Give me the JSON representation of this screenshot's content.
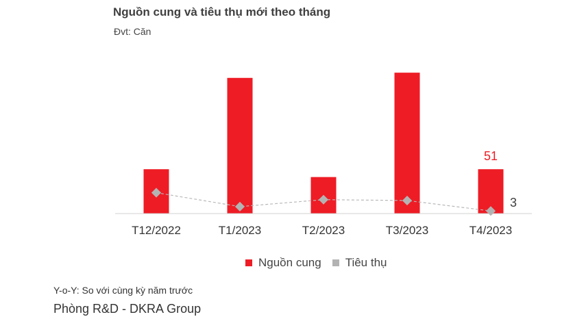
{
  "page": {
    "note": "Y-o-Y: So với cùng kỳ năm trước",
    "source": "Phòng R&D - DKRA Group"
  },
  "chart_data": {
    "type": "bar",
    "title": "Nguồn cung và tiêu thụ mới theo tháng",
    "unit_label": "Đvt: Căn",
    "categories": [
      "T12/2022",
      "T1/2023",
      "T2/2023",
      "T3/2023",
      "T4/2023"
    ],
    "series": [
      {
        "name": "Nguồn cung",
        "type": "bar",
        "color": "#ee1c25",
        "values": [
          51,
          156,
          42,
          162,
          51
        ],
        "data_labels": [
          null,
          null,
          null,
          null,
          "51"
        ]
      },
      {
        "name": "Tiêu thụ",
        "type": "line",
        "color": "#b3b3b3",
        "values": [
          24,
          8,
          16,
          15,
          3
        ],
        "data_labels": [
          null,
          null,
          null,
          null,
          "3"
        ]
      }
    ],
    "ylim": [
      0,
      170
    ],
    "grid": false,
    "legend": "bottom-center",
    "xlabel": "",
    "ylabel": ""
  }
}
